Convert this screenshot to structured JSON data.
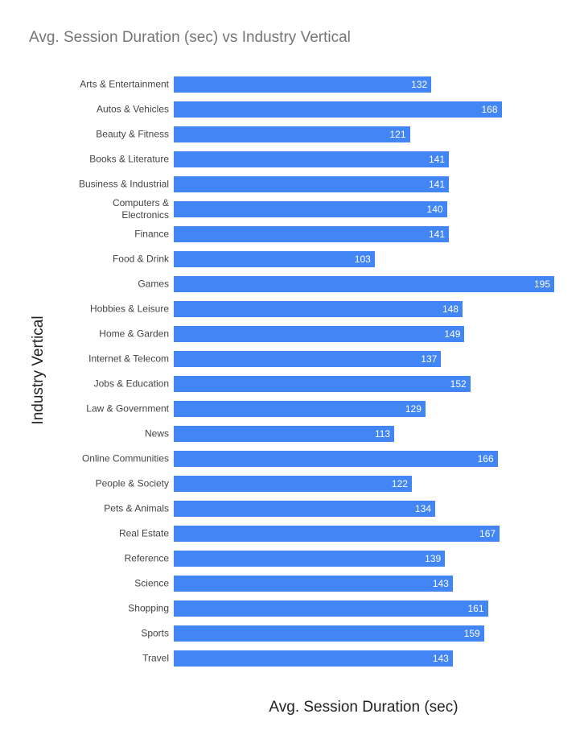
{
  "chart_data": {
    "type": "bar",
    "orientation": "horizontal",
    "title": "Avg. Session Duration (sec) vs Industry Vertical",
    "x_label": "Avg. Session Duration (sec)",
    "y_label": "Industry Vertical",
    "color": "#4285f4",
    "categories": [
      "Arts & Entertainment",
      "Autos & Vehicles",
      "Beauty & Fitness",
      "Books & Literature",
      "Business & Industrial",
      "Computers & Electronics",
      "Finance",
      "Food & Drink",
      "Games",
      "Hobbies & Leisure",
      "Home & Garden",
      "Internet & Telecom",
      "Jobs & Education",
      "Law & Government",
      "News",
      "Online Communities",
      "People & Society",
      "Pets & Animals",
      "Real Estate",
      "Reference",
      "Science",
      "Shopping",
      "Sports",
      "Travel"
    ],
    "values": [
      132,
      168,
      121,
      141,
      141,
      140,
      141,
      103,
      195,
      148,
      149,
      137,
      152,
      129,
      113,
      166,
      122,
      134,
      167,
      139,
      143,
      161,
      159,
      143
    ]
  }
}
